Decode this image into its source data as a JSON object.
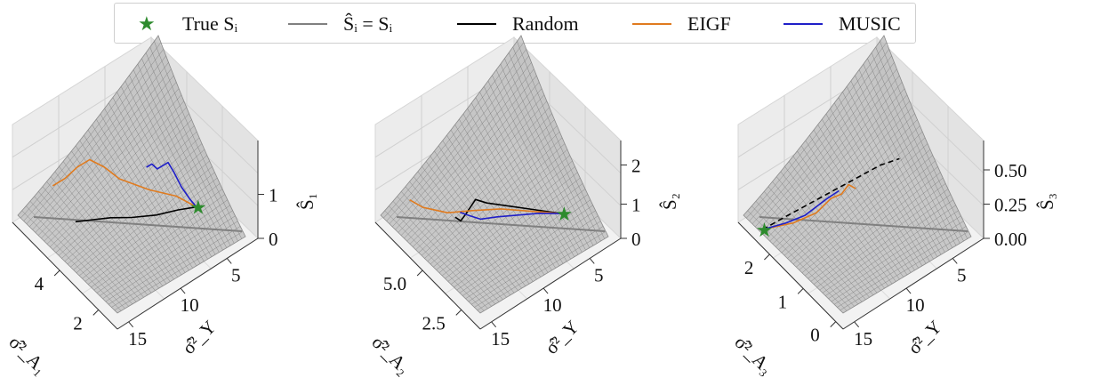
{
  "legend": [
    {
      "key": "true",
      "label": "True Sᵢ",
      "color": "#2e8b2e",
      "kind": "star"
    },
    {
      "key": "ideal",
      "label": "Ŝᵢ = Sᵢ",
      "color": "#808080",
      "kind": "line"
    },
    {
      "key": "random",
      "label": "Random",
      "color": "#000000",
      "kind": "line"
    },
    {
      "key": "eigf",
      "label": "EIGF",
      "color": "#e07b1f",
      "kind": "line"
    },
    {
      "key": "music",
      "label": "MUSIC",
      "color": "#1f1fc8",
      "kind": "line"
    }
  ],
  "chart_data": [
    {
      "type": "3d-surface",
      "x_label": "σ̂²_A₁",
      "x_ticks": [
        "4",
        "2"
      ],
      "y_label": "σ̂²_Y",
      "y_ticks": [
        "5",
        "10",
        "15"
      ],
      "z_label": "Ŝ₁",
      "z_ticks": [
        "0",
        "1"
      ],
      "true_value": {
        "sigma_A": 4.6,
        "sigma_Y": 2.0,
        "S": 1.1
      },
      "series": [
        {
          "name": "Random",
          "points": [
            [
              4.6,
              2.0,
              1.1
            ],
            [
              4.3,
              3.5,
              1.0
            ],
            [
              4.0,
              5.5,
              0.9
            ],
            [
              3.6,
              7.5,
              0.8
            ],
            [
              3.2,
              9.0,
              0.7
            ],
            [
              3.0,
              9.5,
              0.6
            ],
            [
              2.8,
              10.0,
              0.5
            ],
            [
              2.6,
              10.5,
              0.4
            ],
            [
              2.4,
              11.0,
              0.3
            ]
          ]
        },
        {
          "name": "EIGF",
          "points": [
            [
              4.6,
              2.0,
              1.1
            ],
            [
              4.1,
              3.0,
              1.15
            ],
            [
              3.6,
              5.0,
              1.2
            ],
            [
              3.0,
              7.0,
              1.3
            ],
            [
              2.7,
              8.0,
              1.5
            ],
            [
              2.4,
              9.0,
              1.6
            ],
            [
              2.2,
              10.0,
              1.4
            ],
            [
              2.0,
              11.0,
              1.1
            ],
            [
              1.8,
              12.0,
              0.9
            ]
          ]
        },
        {
          "name": "MUSIC",
          "points": [
            [
              4.6,
              2.0,
              1.1
            ],
            [
              4.5,
              2.6,
              1.3
            ],
            [
              4.3,
              3.0,
              1.5
            ],
            [
              4.1,
              3.4,
              1.8
            ],
            [
              4.0,
              3.8,
              2.0
            ],
            [
              3.9,
              4.2,
              1.9
            ],
            [
              3.8,
              4.6,
              1.8
            ],
            [
              3.7,
              5.0,
              1.9
            ],
            [
              3.6,
              5.4,
              1.8
            ]
          ]
        }
      ]
    },
    {
      "type": "3d-surface",
      "x_label": "σ̂²_A₂",
      "x_ticks": [
        "5.0",
        "2.5"
      ],
      "y_label": "σ̂²_Y",
      "y_ticks": [
        "5",
        "10",
        "15"
      ],
      "z_label": "Ŝ₂",
      "z_ticks": [
        "0",
        "1",
        "2"
      ],
      "true_value": {
        "sigma_A": 5.6,
        "sigma_Y": 2.0,
        "S": 1.1
      },
      "series": [
        {
          "name": "Random",
          "points": [
            [
              5.6,
              2.0,
              1.1
            ],
            [
              5.0,
              4.0,
              1.1
            ],
            [
              4.5,
              6.0,
              1.15
            ],
            [
              4.0,
              8.0,
              1.2
            ],
            [
              3.8,
              9.0,
              1.3
            ],
            [
              3.7,
              10.0,
              1.0
            ],
            [
              3.6,
              10.5,
              0.8
            ],
            [
              3.5,
              11.0,
              0.9
            ]
          ]
        },
        {
          "name": "EIGF",
          "points": [
            [
              5.6,
              2.0,
              1.1
            ],
            [
              4.8,
              4.0,
              0.95
            ],
            [
              4.0,
              6.0,
              0.8
            ],
            [
              3.3,
              8.0,
              0.6
            ],
            [
              2.8,
              10.0,
              0.5
            ],
            [
              2.3,
              12.0,
              0.6
            ],
            [
              2.0,
              13.0,
              0.75
            ]
          ]
        },
        {
          "name": "MUSIC",
          "points": [
            [
              5.6,
              2.0,
              1.1
            ],
            [
              5.0,
              3.5,
              0.95
            ],
            [
              4.5,
              5.0,
              0.8
            ],
            [
              4.0,
              6.5,
              0.65
            ],
            [
              3.7,
              8.0,
              0.6
            ],
            [
              3.5,
              9.0,
              0.7
            ],
            [
              3.4,
              10.0,
              0.85
            ]
          ]
        }
      ]
    },
    {
      "type": "3d-surface",
      "x_label": "σ̂²_A₃",
      "x_ticks": [
        "2",
        "1",
        "0"
      ],
      "y_label": "σ̂²_Y",
      "y_ticks": [
        "5",
        "10",
        "15"
      ],
      "z_label": "Ŝ₃",
      "z_ticks": [
        "0.00",
        "0.25",
        "0.50"
      ],
      "true_value": {
        "sigma_A": 0.4,
        "sigma_Y": 14.5,
        "S": 0.05
      },
      "series": [
        {
          "name": "Random",
          "points": [
            [
              0.4,
              14.5,
              0.05
            ],
            [
              0.6,
              12.0,
              0.15
            ],
            [
              0.8,
              10.0,
              0.25
            ],
            [
              1.0,
              8.0,
              0.35
            ],
            [
              1.2,
              6.0,
              0.45
            ],
            [
              1.4,
              4.0,
              0.55
            ],
            [
              1.6,
              2.5,
              0.62
            ]
          ]
        },
        {
          "name": "EIGF",
          "points": [
            [
              0.4,
              14.5,
              0.05
            ],
            [
              0.7,
              12.0,
              0.12
            ],
            [
              0.9,
              10.0,
              0.2
            ],
            [
              1.0,
              8.5,
              0.3
            ],
            [
              1.0,
              7.0,
              0.28
            ],
            [
              1.0,
              6.0,
              0.32
            ],
            [
              1.0,
              5.0,
              0.25
            ]
          ]
        },
        {
          "name": "MUSIC",
          "points": [
            [
              0.4,
              14.5,
              0.05
            ],
            [
              0.6,
              12.5,
              0.1
            ],
            [
              0.8,
              11.0,
              0.18
            ],
            [
              0.9,
              10.0,
              0.25
            ],
            [
              1.0,
              9.0,
              0.32
            ],
            [
              1.1,
              8.0,
              0.38
            ]
          ]
        }
      ]
    }
  ]
}
